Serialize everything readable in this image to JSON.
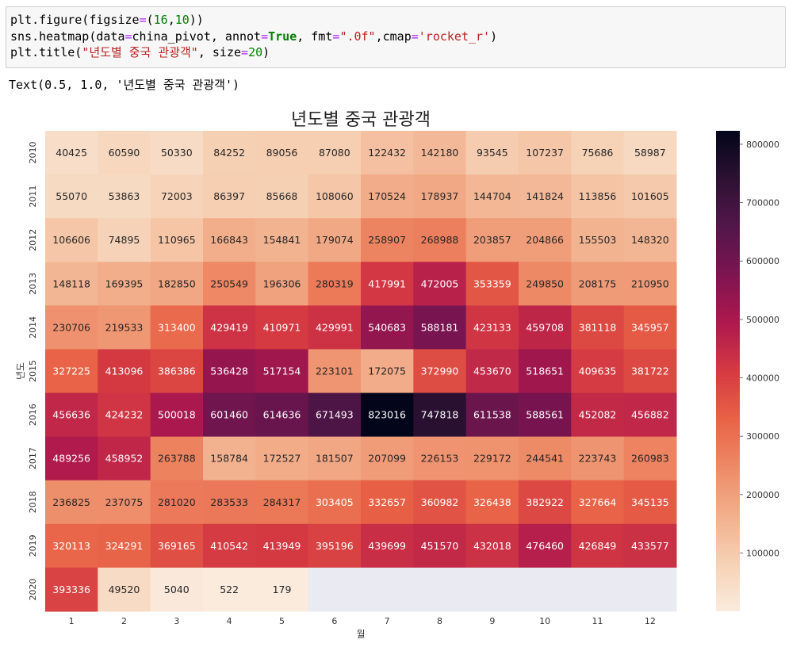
{
  "code_cell": {
    "lines": [
      [
        {
          "t": "plt.figure(figsize",
          "c": ""
        },
        {
          "t": "=",
          "c": "op"
        },
        {
          "t": "(",
          "c": ""
        },
        {
          "t": "16",
          "c": "num"
        },
        {
          "t": ",",
          "c": ""
        },
        {
          "t": "10",
          "c": "num"
        },
        {
          "t": "))",
          "c": ""
        }
      ],
      [
        {
          "t": "sns.heatmap(data",
          "c": ""
        },
        {
          "t": "=",
          "c": "op"
        },
        {
          "t": "china_pivot, annot",
          "c": ""
        },
        {
          "t": "=",
          "c": "op"
        },
        {
          "t": "True",
          "c": "kw"
        },
        {
          "t": ", fmt",
          "c": ""
        },
        {
          "t": "=",
          "c": "op"
        },
        {
          "t": "\".0f\"",
          "c": "str"
        },
        {
          "t": ",cmap",
          "c": ""
        },
        {
          "t": "=",
          "c": "op"
        },
        {
          "t": "'rocket_r'",
          "c": "str"
        },
        {
          "t": ")",
          "c": ""
        }
      ],
      [
        {
          "t": "plt.title(",
          "c": ""
        },
        {
          "t": "\"년도별 중국 관광객\"",
          "c": "str"
        },
        {
          "t": ", size",
          "c": ""
        },
        {
          "t": "=",
          "c": "op"
        },
        {
          "t": "20",
          "c": "num"
        },
        {
          "t": ")",
          "c": ""
        }
      ]
    ]
  },
  "output_text": "Text(0.5, 1.0, '년도별 중국 관광객')",
  "chart_data": {
    "type": "heatmap",
    "title": "년도별 중국 관광객",
    "xlabel": "월",
    "ylabel": "년도",
    "x_categories": [
      "1",
      "2",
      "3",
      "4",
      "5",
      "6",
      "7",
      "8",
      "9",
      "10",
      "11",
      "12"
    ],
    "y_categories": [
      "2010",
      "2011",
      "2012",
      "2013",
      "2014",
      "2015",
      "2016",
      "2017",
      "2018",
      "2019",
      "2020"
    ],
    "values": [
      [
        40425,
        60590,
        50330,
        84252,
        89056,
        87080,
        122432,
        142180,
        93545,
        107237,
        75686,
        58987
      ],
      [
        55070,
        53863,
        72003,
        86397,
        85668,
        108060,
        170524,
        178937,
        144704,
        141824,
        113856,
        101605
      ],
      [
        106606,
        74895,
        110965,
        166843,
        154841,
        179074,
        258907,
        268988,
        203857,
        204866,
        155503,
        148320
      ],
      [
        148118,
        169395,
        182850,
        250549,
        196306,
        280319,
        417991,
        472005,
        353359,
        249850,
        208175,
        210950
      ],
      [
        230706,
        219533,
        313400,
        429419,
        410971,
        429991,
        540683,
        588181,
        423133,
        459708,
        381118,
        345957
      ],
      [
        327225,
        413096,
        386386,
        536428,
        517154,
        223101,
        172075,
        372990,
        453670,
        518651,
        409635,
        381722
      ],
      [
        456636,
        424232,
        500018,
        601460,
        614636,
        671493,
        823016,
        747818,
        611538,
        588561,
        452082,
        456882
      ],
      [
        489256,
        458952,
        263788,
        158784,
        172527,
        181507,
        207099,
        226153,
        229172,
        244541,
        223743,
        260983
      ],
      [
        236825,
        237075,
        281020,
        283533,
        284317,
        303405,
        332657,
        360982,
        326438,
        382922,
        327664,
        345135
      ],
      [
        320113,
        324291,
        369165,
        410542,
        413949,
        395196,
        439699,
        451570,
        432018,
        476460,
        426849,
        433577
      ],
      [
        393336,
        49520,
        5040,
        522,
        179,
        null,
        null,
        null,
        null,
        null,
        null,
        null
      ]
    ],
    "colorbar": {
      "min": 179,
      "max": 823016,
      "ticks": [
        100000,
        200000,
        300000,
        400000,
        500000,
        600000,
        700000,
        800000
      ],
      "cmap": "rocket_r"
    },
    "missing_color": "#eaeaf2"
  }
}
